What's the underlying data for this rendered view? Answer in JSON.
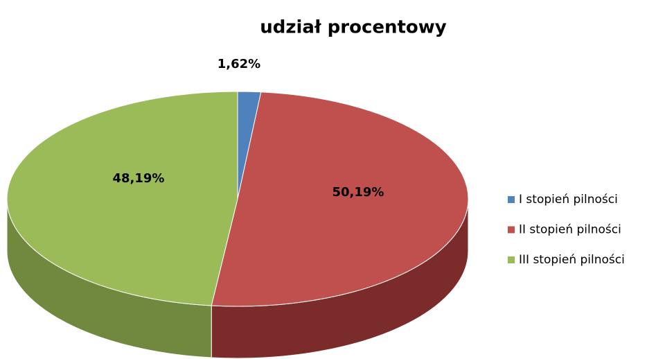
{
  "chart_data": {
    "type": "pie",
    "title": "udział procentowy",
    "categories": [
      "I stopień pilności",
      "II stopień pilności",
      "III stopień pilności"
    ],
    "values": [
      1.62,
      50.19,
      48.19
    ],
    "value_labels": [
      "1,62%",
      "50,19%",
      "48,19%"
    ],
    "colors": [
      "#4f81bd",
      "#c0504d",
      "#9bbb59"
    ],
    "side_colors": [
      "#385d8a",
      "#7b2c2a",
      "#71893f"
    ],
    "legend": "right"
  }
}
